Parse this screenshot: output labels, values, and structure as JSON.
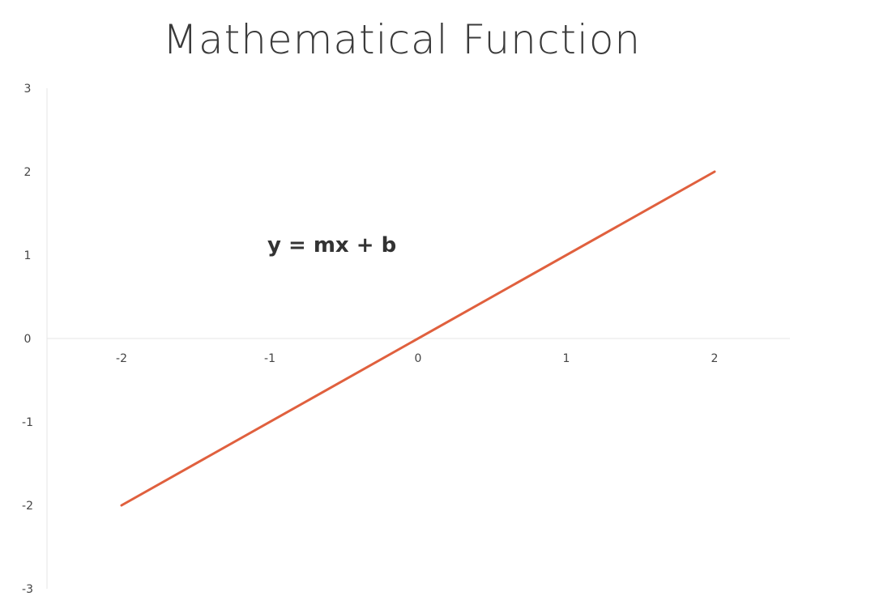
{
  "chart_data": {
    "type": "line",
    "title": "Mathematical Function",
    "annotation": "y = mx + b",
    "xlim": [
      -2.5,
      2.5
    ],
    "ylim": [
      -3,
      3
    ],
    "x_ticks": [
      "-2",
      "-1",
      "0",
      "1",
      "2"
    ],
    "y_ticks": [
      "3",
      "2",
      "1",
      "0",
      "-1",
      "-2",
      "-3"
    ],
    "grid": false,
    "series": [
      {
        "x": [
          -2,
          2
        ],
        "y": [
          -2,
          2
        ],
        "color": "#e0603e"
      }
    ],
    "axis_color": "#e6e6e6"
  }
}
